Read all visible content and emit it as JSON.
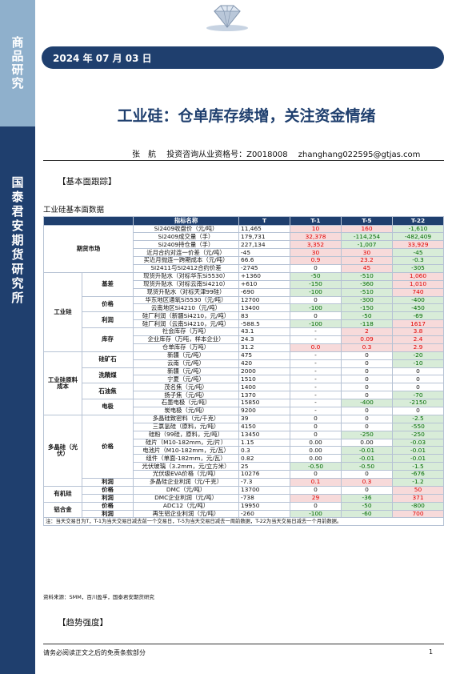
{
  "sidebar": {
    "top_label": "商品研究",
    "bottom_label": "国泰君安期货研究所"
  },
  "header": {
    "date": "2024 年 07 月 03 日"
  },
  "title": "工业硅：仓单库存续增，关注资金情绪",
  "author": {
    "name": "张　航",
    "license": "投资咨询从业资格号：Z0018008",
    "email": "zhanghang022595@gtjas.com"
  },
  "section1": "【基本面跟踪】",
  "table_title": "工业硅基本面数据",
  "table": {
    "headers": [
      "指标名称",
      "T",
      "T-1",
      "T-5",
      "T-22"
    ],
    "rows": [
      {
        "cat1": "期货市场",
        "cat2": "",
        "name": "Si2409收盘价（元/吨）",
        "T": "11,465",
        "T1": "10",
        "T1c": "pos",
        "T5": "160",
        "T5c": "pos",
        "T22": "-1,610",
        "T22c": "neg"
      },
      {
        "cat1": "",
        "cat2": "",
        "name": "Si2409成交量（手）",
        "T": "179,731",
        "T1": "32,378",
        "T1c": "pos",
        "T5": "-114,254",
        "T5c": "neg",
        "T22": "-482,409",
        "T22c": "neg"
      },
      {
        "cat1": "",
        "cat2": "",
        "name": "Si2409持仓量（手）",
        "T": "227,134",
        "T1": "3,352",
        "T1c": "pos",
        "T5": "-1,007",
        "T5c": "neg",
        "T22": "33,929",
        "T22c": "pos"
      },
      {
        "cat1": "",
        "cat2": "",
        "name": "近月合约对连一价差（元/吨）",
        "T": "-45",
        "T1": "30",
        "T1c": "pos",
        "T5": "30",
        "T5c": "pos",
        "T22": "-45",
        "T22c": "neg"
      },
      {
        "cat1": "",
        "cat2": "",
        "name": "买近月抛连一跨期成本（元/吨）",
        "T": "66.6",
        "T1": "0.9",
        "T1c": "pos",
        "T5": "23.2",
        "T5c": "pos",
        "T22": "-0.3",
        "T22c": "neg"
      },
      {
        "cat1": "",
        "cat2": "",
        "name": "SI2411与SI2412合约价差",
        "T": "-2745",
        "T1": "0",
        "T1c": "zero",
        "T5": "45",
        "T5c": "pos",
        "T22": "-305",
        "T22c": "neg"
      },
      {
        "cat1": "工业硅",
        "cat2": "基差",
        "name": "现货升贴水（对标华东Si5530）",
        "T": "+1360",
        "T1": "-50",
        "T1c": "neg",
        "T5": "-510",
        "T5c": "neg",
        "T22": "1,060",
        "T22c": "pos"
      },
      {
        "cat1": "",
        "cat2": "",
        "name": "现货升贴水（对标云南Si4210）",
        "T": "+610",
        "T1": "-150",
        "T1c": "neg",
        "T5": "-360",
        "T5c": "neg",
        "T22": "1,010",
        "T22c": "pos"
      },
      {
        "cat1": "",
        "cat2": "",
        "name": "现货升贴水（对标天津99硅）",
        "T": "-690",
        "T1": "-100",
        "T1c": "neg",
        "T5": "-510",
        "T5c": "neg",
        "T22": "740",
        "T22c": "pos"
      },
      {
        "cat1": "",
        "cat2": "价格",
        "name": "华东地区通氧Si5530（元/吨）",
        "T": "12700",
        "T1": "0",
        "T1c": "zero",
        "T5": "-300",
        "T5c": "neg",
        "T22": "-400",
        "T22c": "neg"
      },
      {
        "cat1": "",
        "cat2": "",
        "name": "云南地区Si4210（元/吨）",
        "T": "13400",
        "T1": "-100",
        "T1c": "neg",
        "T5": "-150",
        "T5c": "neg",
        "T22": "-450",
        "T22c": "neg"
      },
      {
        "cat1": "",
        "cat2": "利润",
        "name": "硅厂利润（新疆Si4210，元/吨）",
        "T": "83",
        "T1": "0",
        "T1c": "zero",
        "T5": "-50",
        "T5c": "neg",
        "T22": "-69",
        "T22c": "neg"
      },
      {
        "cat1": "",
        "cat2": "",
        "name": "硅厂利润（云南Si4210，元/吨）",
        "T": "-588.5",
        "T1": "-100",
        "T1c": "neg",
        "T5": "-118",
        "T5c": "neg",
        "T22": "1617",
        "T22c": "pos"
      },
      {
        "cat1": "",
        "cat2": "库存",
        "name": "社会库存（万吨）",
        "T": "43.1",
        "T1": "-",
        "T1c": "zero",
        "T5": "2",
        "T5c": "pos",
        "T22": "3.8",
        "T22c": "pos"
      },
      {
        "cat1": "",
        "cat2": "",
        "name": "企业库存（万吨，样本企业）",
        "T": "24.3",
        "T1": "-",
        "T1c": "zero",
        "T5": "0.09",
        "T5c": "pos",
        "T22": "2.4",
        "T22c": "pos"
      },
      {
        "cat1": "",
        "cat2": "",
        "name": "仓单库存（万吨）",
        "T": "31.2",
        "T1": "0.0",
        "T1c": "pos",
        "T5": "0.3",
        "T5c": "pos",
        "T22": "2.9",
        "T22c": "pos"
      },
      {
        "cat1": "工业硅原料成本",
        "cat2": "硅矿石",
        "name": "新疆（元/吨）",
        "T": "475",
        "T1": "-",
        "T1c": "zero",
        "T5": "0",
        "T5c": "zero",
        "T22": "-20",
        "T22c": "neg"
      },
      {
        "cat1": "",
        "cat2": "",
        "name": "云南（元/吨）",
        "T": "420",
        "T1": "-",
        "T1c": "zero",
        "T5": "0",
        "T5c": "zero",
        "T22": "-10",
        "T22c": "neg"
      },
      {
        "cat1": "",
        "cat2": "洗精煤",
        "name": "新疆（元/吨）",
        "T": "2000",
        "T1": "-",
        "T1c": "zero",
        "T5": "0",
        "T5c": "zero",
        "T22": "0",
        "T22c": "zero"
      },
      {
        "cat1": "",
        "cat2": "",
        "name": "宁夏（元/吨）",
        "T": "1510",
        "T1": "-",
        "T1c": "zero",
        "T5": "0",
        "T5c": "zero",
        "T22": "0",
        "T22c": "zero"
      },
      {
        "cat1": "",
        "cat2": "石油焦",
        "name": "茂名焦（元/吨）",
        "T": "1400",
        "T1": "-",
        "T1c": "zero",
        "T5": "0",
        "T5c": "zero",
        "T22": "0",
        "T22c": "zero"
      },
      {
        "cat1": "",
        "cat2": "",
        "name": "扬子焦（元/吨）",
        "T": "1370",
        "T1": "-",
        "T1c": "zero",
        "T5": "0",
        "T5c": "zero",
        "T22": "-70",
        "T22c": "neg"
      },
      {
        "cat1": "",
        "cat2": "电极",
        "name": "石墨电极（元/吨）",
        "T": "15850",
        "T1": "-",
        "T1c": "zero",
        "T5": "-400",
        "T5c": "neg",
        "T22": "-2150",
        "T22c": "neg"
      },
      {
        "cat1": "",
        "cat2": "",
        "name": "炭电极（元/吨）",
        "T": "9200",
        "T1": "-",
        "T1c": "zero",
        "T5": "0",
        "T5c": "zero",
        "T22": "0",
        "T22c": "zero"
      },
      {
        "cat1": "多晶硅（光伏）",
        "cat2": "价格",
        "name": "多晶硅致密料（元/千克）",
        "T": "39",
        "T1": "0",
        "T1c": "zero",
        "T5": "0",
        "T5c": "zero",
        "T22": "-2.5",
        "T22c": "neg"
      },
      {
        "cat1": "",
        "cat2": "",
        "name": "三氯氢硅（原料，元/吨）",
        "T": "4150",
        "T1": "0",
        "T1c": "zero",
        "T5": "0",
        "T5c": "zero",
        "T22": "-550",
        "T22c": "neg"
      },
      {
        "cat1": "",
        "cat2": "",
        "name": "硅粉（99硅，原料，元/吨）",
        "T": "13450",
        "T1": "0",
        "T1c": "zero",
        "T5": "-250",
        "T5c": "neg",
        "T22": "-250",
        "T22c": "neg"
      },
      {
        "cat1": "",
        "cat2": "",
        "name": "硅片（M10-182mm，元/片）",
        "T": "1.15",
        "T1": "0.00",
        "T1c": "zero",
        "T5": "0.00",
        "T5c": "zero",
        "T22": "-0.03",
        "T22c": "neg"
      },
      {
        "cat1": "",
        "cat2": "",
        "name": "电池片（M10-182mm，元/瓦）",
        "T": "0.3",
        "T1": "0.00",
        "T1c": "zero",
        "T5": "-0.01",
        "T5c": "neg",
        "T22": "-0.01",
        "T22c": "neg"
      },
      {
        "cat1": "",
        "cat2": "",
        "name": "组件（单面-182mm，元/瓦）",
        "T": "0.82",
        "T1": "0.00",
        "T1c": "zero",
        "T5": "-0.01",
        "T5c": "neg",
        "T22": "-0.01",
        "T22c": "neg"
      },
      {
        "cat1": "",
        "cat2": "",
        "name": "光伏玻璃（3.2mm，元/立方米）",
        "T": "25",
        "T1": "-0.50",
        "T1c": "neg",
        "T5": "-0.50",
        "T5c": "neg",
        "T22": "-1.5",
        "T22c": "neg"
      },
      {
        "cat1": "",
        "cat2": "",
        "name": "光伏级EVA价格（元/吨）",
        "T": "10276",
        "T1": "0",
        "T1c": "zero",
        "T5": "0",
        "T5c": "zero",
        "T22": "-676",
        "T22c": "neg"
      },
      {
        "cat1": "",
        "cat2": "利润",
        "name": "多晶硅企业利润（元/千克）",
        "T": "-7.3",
        "T1": "0.1",
        "T1c": "pos",
        "T5": "0.3",
        "T5c": "pos",
        "T22": "-1.2",
        "T22c": "neg"
      },
      {
        "cat1": "有机硅",
        "cat2": "价格",
        "name": "DMC（元/吨）",
        "T": "13700",
        "T1": "0",
        "T1c": "zero",
        "T5": "0",
        "T5c": "zero",
        "T22": "50",
        "T22c": "pos"
      },
      {
        "cat1": "",
        "cat2": "利润",
        "name": "DMC企业利润（元/吨）",
        "T": "-738",
        "T1": "29",
        "T1c": "pos",
        "T5": "-36",
        "T5c": "neg",
        "T22": "371",
        "T22c": "pos"
      },
      {
        "cat1": "铝合金",
        "cat2": "价格",
        "name": "ADC12（元/吨）",
        "T": "19950",
        "T1": "0",
        "T1c": "zero",
        "T5": "-50",
        "T5c": "neg",
        "T22": "-800",
        "T22c": "neg"
      },
      {
        "cat1": "",
        "cat2": "利润",
        "name": "再生铝企业利润（元/吨）",
        "T": "-260",
        "T1": "-100",
        "T1c": "neg",
        "T5": "-60",
        "T5c": "neg",
        "T22": "700",
        "T22c": "pos"
      }
    ],
    "note": "注：当天交易日为T，T-1为当天交易日减去前一个交易日，T-5为当天交易日减去一周前数据，T-22为当天交易日减去一个月前数据。"
  },
  "source": "资料来源：SMM，百川盈孚，国泰君安期货研究",
  "section2": "【趋势强度】",
  "footer": {
    "disclaimer": "请务必阅读正文之后的免责条款部分",
    "page": "1"
  },
  "colors": {
    "navy": "#1f3f6e",
    "sidebar_top": "#8fb0cc",
    "positive": "#e00000",
    "negative": "#006a00"
  }
}
